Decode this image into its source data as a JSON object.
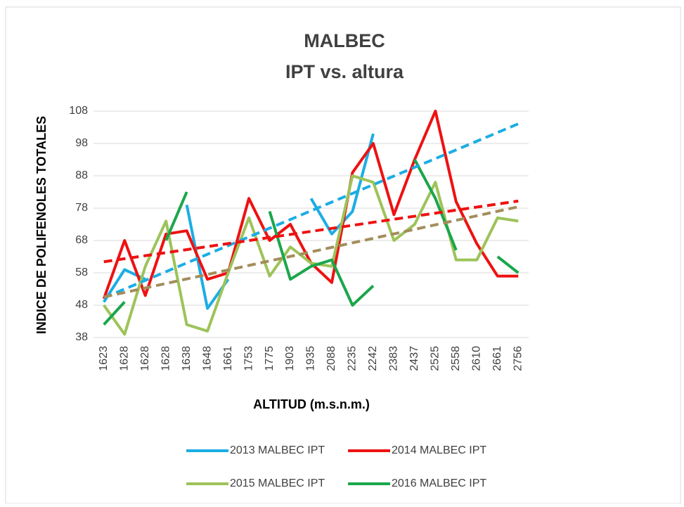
{
  "chart_data": {
    "type": "line",
    "title": [
      "MALBEC",
      "IPT vs. altura"
    ],
    "x_label": "ALTITUD (m.s.n.m.)",
    "y_label": "INDICE DE  POLIFENOLES TOTALES",
    "categories": [
      "1623",
      "1628",
      "1628",
      "1628",
      "1638",
      "1648",
      "1661",
      "1753",
      "1775",
      "1903",
      "1935",
      "2088",
      "2235",
      "2242",
      "2383",
      "2437",
      "2525",
      "2558",
      "2610",
      "2661",
      "2756"
    ],
    "ylim": [
      38,
      108
    ],
    "yticks": [
      38,
      48,
      58,
      68,
      78,
      88,
      98,
      108
    ],
    "grid": true,
    "legend": "bottom",
    "series": [
      {
        "name": "2013 MALBEC IPT",
        "color": "#1cade4",
        "trendline": true,
        "trendline_color": "#1cade4",
        "values": [
          49,
          59,
          56,
          null,
          79,
          47,
          56,
          null,
          null,
          null,
          81,
          70,
          77,
          101,
          null,
          null,
          null,
          null,
          null,
          null,
          null
        ]
      },
      {
        "name": "2014 MALBEC IPT",
        "color": "#ee1111",
        "trendline": true,
        "trendline_color": "#ee1111",
        "values": [
          50,
          68,
          51,
          70,
          71,
          56,
          58,
          81,
          68,
          73,
          61,
          55,
          89,
          98,
          76,
          93,
          108,
          80,
          67,
          57,
          57
        ]
      },
      {
        "name": "2015 MALBEC IPT",
        "color": "#9dc359",
        "trendline": true,
        "trendline_color": "#a38d5c",
        "values": [
          48,
          39,
          60,
          74,
          42,
          40,
          58,
          75,
          57,
          66,
          61,
          60,
          88,
          86,
          68,
          73,
          86,
          62,
          62,
          75,
          74
        ]
      },
      {
        "name": "2016 MALBEC IPT",
        "color": "#1aa64b",
        "trendline": false,
        "values": [
          42,
          49,
          null,
          68,
          83,
          null,
          null,
          null,
          77,
          56,
          60,
          62,
          48,
          54,
          null,
          93,
          81,
          65,
          null,
          63,
          58
        ]
      }
    ]
  }
}
